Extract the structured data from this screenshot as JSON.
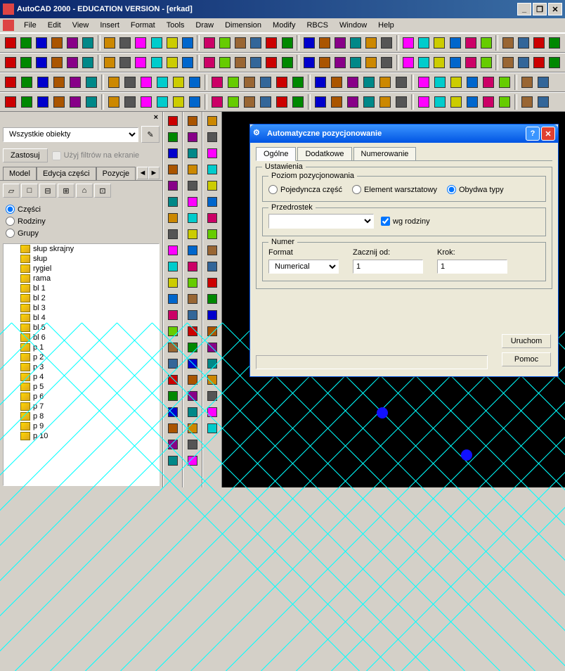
{
  "title": "AutoCAD 2000 - EDUCATION VERSION - [erkad]",
  "menus": [
    "File",
    "Edit",
    "View",
    "Insert",
    "Format",
    "Tools",
    "Draw",
    "Dimension",
    "Modify",
    "RBCS",
    "Window",
    "Help"
  ],
  "leftPanel": {
    "filterSelect": "Wszystkie obiekty",
    "applyBtn": "Zastosuj",
    "useFilters": "Użyj filtrów na ekranie",
    "tabs": [
      "Model",
      "Edycja części",
      "Pozycje"
    ],
    "radios": {
      "czesci": "Części",
      "rodziny": "Rodziny",
      "grupy": "Grupy"
    },
    "treeItems": [
      "słup skrajny",
      "słup",
      "rygiel",
      "rama",
      "bl 1",
      "bl 2",
      "bl 3",
      "bl 4",
      "bl 5",
      "bl 6",
      "p 1",
      "p 2",
      "p 3",
      "p 4",
      "p 5",
      "p 6",
      "p 7",
      "p 8",
      "p 9",
      "p 10"
    ]
  },
  "dialog": {
    "title": "Automatyczne pozycjonowanie",
    "tabs": [
      "Ogólne",
      "Dodatkowe",
      "Numerowanie"
    ],
    "ustawienia": "Ustawienia",
    "poziom": "Poziom pozycjonowania",
    "radio1": "Pojedyncza część",
    "radio2": "Element warsztatowy",
    "radio3": "Obydwa typy",
    "przedrostek": "Przedrostek",
    "wgRodziny": "wg rodziny",
    "numer": "Numer",
    "format": "Format",
    "zacznij": "Zacznij od:",
    "krok": "Krok:",
    "formatVal": "Numerical",
    "zacznijVal": "1",
    "krokVal": "1",
    "uruchom": "Uruchom",
    "pomoc": "Pomoc"
  },
  "toolbarIconColors": [
    "#c00",
    "#080",
    "#00c",
    "#a50",
    "#808",
    "#088",
    "#c80",
    "#555",
    "#f0f",
    "#0cc",
    "#cc0",
    "#06c",
    "#c06",
    "#6c0",
    "#963",
    "#369"
  ]
}
